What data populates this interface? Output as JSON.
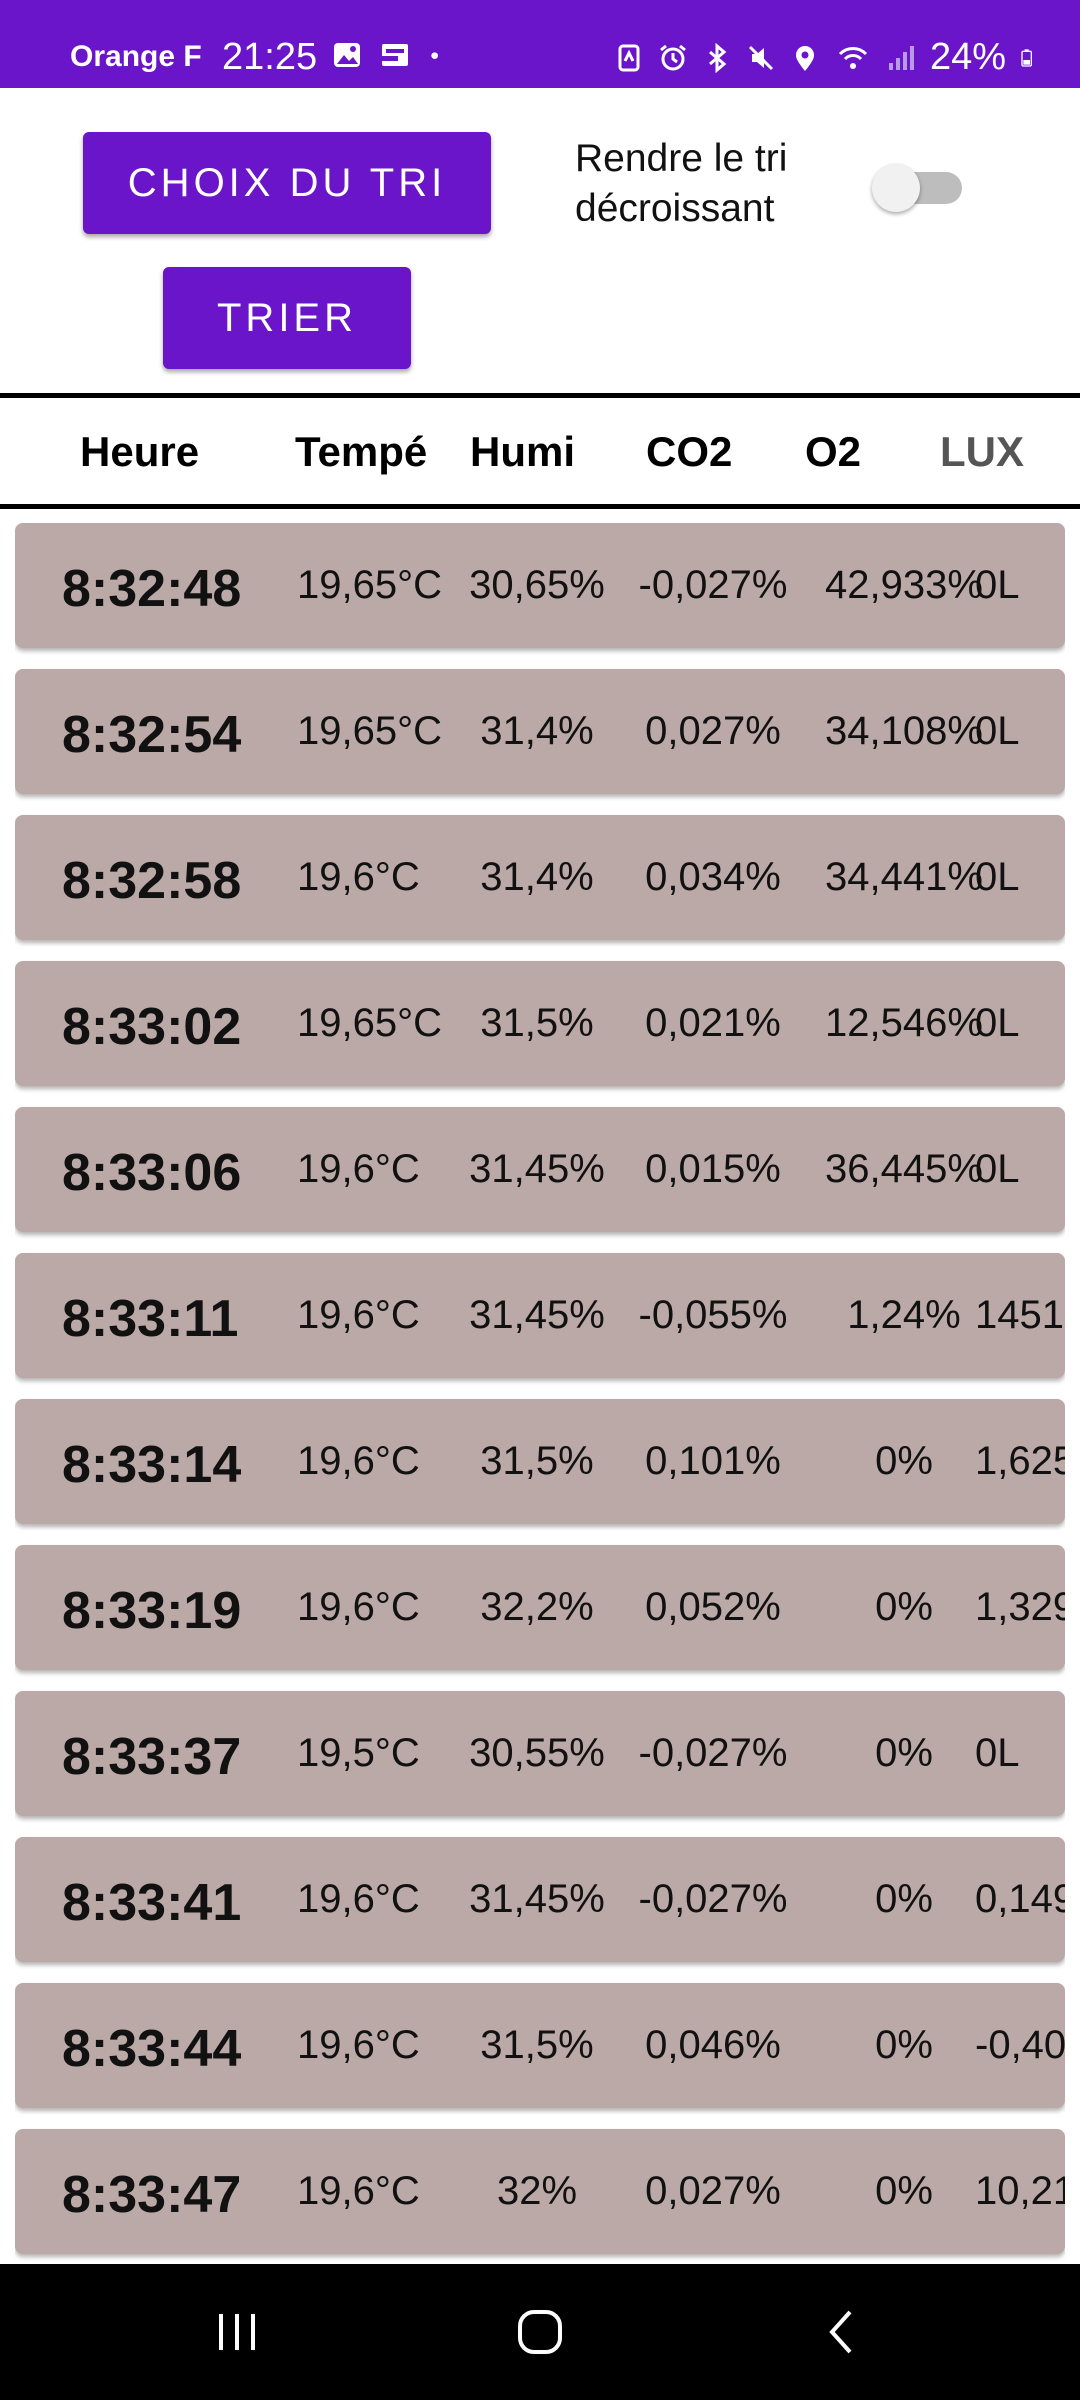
{
  "status_bar": {
    "carrier": "Orange F",
    "time": "21:25",
    "battery": "24%",
    "icons_left": [
      "image-icon",
      "screencast-icon",
      "dot-icon"
    ],
    "icons_right": [
      "nfc-icon",
      "alarm-icon",
      "bluetooth-icon",
      "mute-icon",
      "location-icon",
      "wifi-icon",
      "signal-icon",
      "battery-icon"
    ]
  },
  "controls": {
    "choose_sort_label": "CHOIX DU TRI",
    "sort_label": "TRIER",
    "descending_label": "Rendre le tri décroissant",
    "descending_enabled": false
  },
  "table": {
    "headers": {
      "time": "Heure",
      "temp": "Tempé",
      "humi": "Humi",
      "co2": "CO2",
      "o2": "O2",
      "lux": "LUX"
    },
    "rows": [
      {
        "time": "8:32:48",
        "temp": "19,65°C",
        "humi": "30,65%",
        "co2": "-0,027%",
        "o2": "42,933%",
        "lux": "0L"
      },
      {
        "time": "8:32:54",
        "temp": "19,65°C",
        "humi": "31,4%",
        "co2": "0,027%",
        "o2": "34,108%",
        "lux": "0L"
      },
      {
        "time": "8:32:58",
        "temp": "19,6°C",
        "humi": "31,4%",
        "co2": "0,034%",
        "o2": "34,441%",
        "lux": "0L"
      },
      {
        "time": "8:33:02",
        "temp": "19,65°C",
        "humi": "31,5%",
        "co2": "0,021%",
        "o2": "12,546%",
        "lux": "0L"
      },
      {
        "time": "8:33:06",
        "temp": "19,6°C",
        "humi": "31,45%",
        "co2": "0,015%",
        "o2": "36,445%",
        "lux": "0L"
      },
      {
        "time": "8:33:11",
        "temp": "19,6°C",
        "humi": "31,45%",
        "co2": "-0,055%",
        "o2": "1,24%",
        "lux": "1451"
      },
      {
        "time": "8:33:14",
        "temp": "19,6°C",
        "humi": "31,5%",
        "co2": "0,101%",
        "o2": "0%",
        "lux": "1,625"
      },
      {
        "time": "8:33:19",
        "temp": "19,6°C",
        "humi": "32,2%",
        "co2": "0,052%",
        "o2": "0%",
        "lux": "1,329"
      },
      {
        "time": "8:33:37",
        "temp": "19,5°C",
        "humi": "30,55%",
        "co2": "-0,027%",
        "o2": "0%",
        "lux": "0L"
      },
      {
        "time": "8:33:41",
        "temp": "19,6°C",
        "humi": "31,45%",
        "co2": "-0,027%",
        "o2": "0%",
        "lux": "0,149"
      },
      {
        "time": "8:33:44",
        "temp": "19,6°C",
        "humi": "31,5%",
        "co2": "0,046%",
        "o2": "0%",
        "lux": "-0,40"
      },
      {
        "time": "8:33:47",
        "temp": "19,6°C",
        "humi": "32%",
        "co2": "0,027%",
        "o2": "0%",
        "lux": "10,21"
      }
    ]
  },
  "nav_bar": {
    "buttons": [
      "recents-icon",
      "home-icon",
      "back-icon"
    ]
  },
  "colors": {
    "accent": "#6a15c9",
    "row_background": "#bba9a7",
    "nav_background": "#000000"
  }
}
